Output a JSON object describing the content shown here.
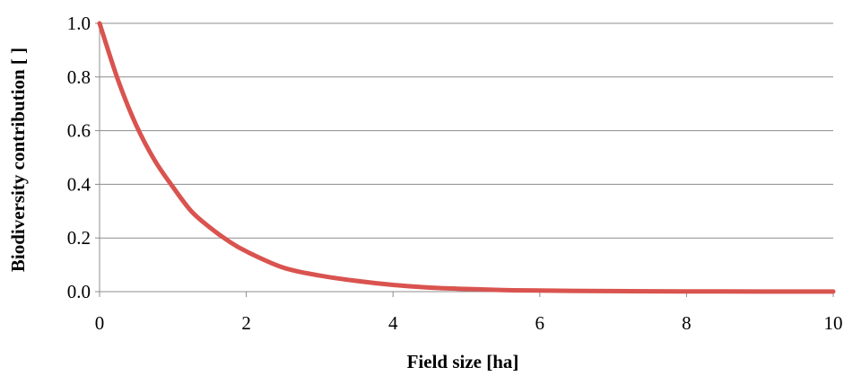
{
  "chart_data": {
    "type": "line",
    "title": "",
    "xlabel": "Field size [ha]",
    "ylabel": "Biodiversity contribution [ ]",
    "xlim": [
      0,
      10
    ],
    "ylim": [
      0,
      1.0
    ],
    "x_ticks": [
      "0",
      "2",
      "4",
      "6",
      "8",
      "10"
    ],
    "y_ticks": [
      "0.0",
      "0.2",
      "0.4",
      "0.6",
      "0.8",
      "1.0"
    ],
    "grid": "horizontal",
    "legend": "none",
    "series": [
      {
        "color": "#d9534f",
        "x": [
          0,
          0.25,
          0.5,
          0.75,
          1,
          1.25,
          1.5,
          1.75,
          2,
          2.5,
          3,
          3.5,
          4,
          4.5,
          5,
          5.5,
          6,
          7,
          8,
          9,
          10
        ],
        "y": [
          1.0,
          0.79,
          0.62,
          0.49,
          0.39,
          0.3,
          0.24,
          0.19,
          0.15,
          0.09,
          0.06,
          0.04,
          0.025,
          0.015,
          0.01,
          0.006,
          0.004,
          0.002,
          0.001,
          0.0005,
          0.0003
        ]
      }
    ]
  }
}
